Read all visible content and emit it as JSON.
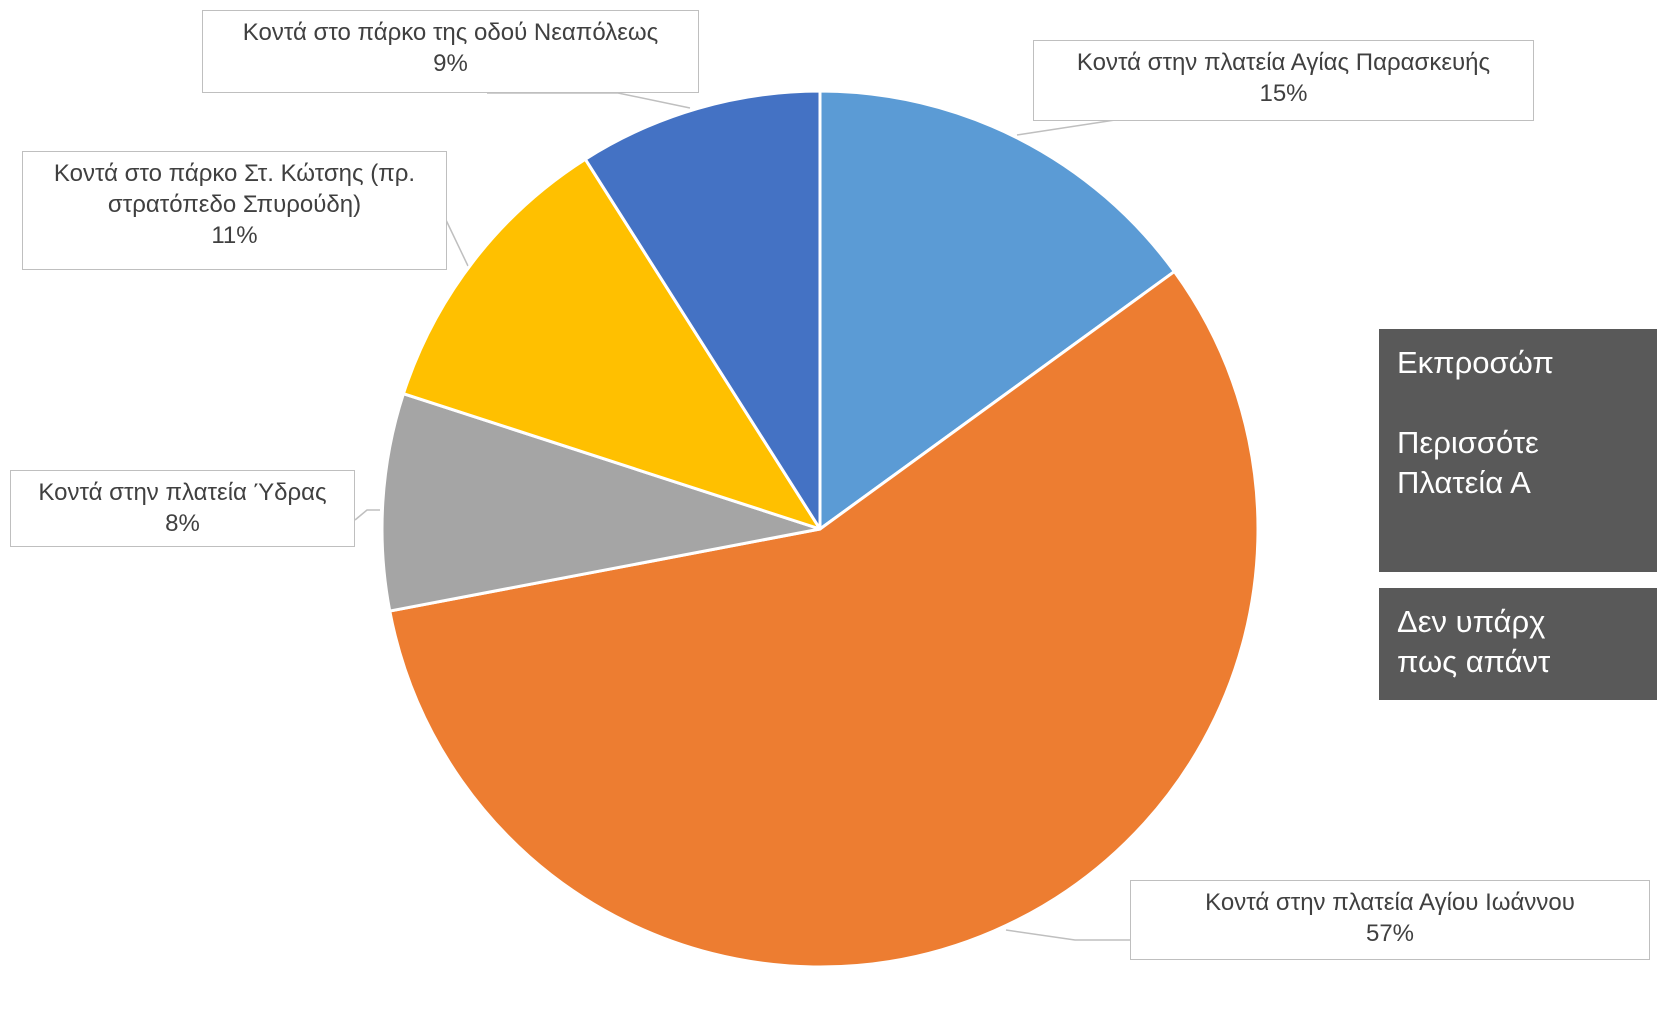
{
  "chart_data": {
    "type": "pie",
    "start_angle_deg": 0,
    "direction": "clockwise",
    "slices": [
      {
        "label": "Κοντά στην πλατεία Αγίας Παρασκευής",
        "value": 15,
        "display": "15%",
        "color": "#5B9BD5"
      },
      {
        "label": "Κοντά στην πλατεία Αγίου Ιωάννου",
        "value": 57,
        "display": "57%",
        "color": "#ED7D31"
      },
      {
        "label": "Κοντά στην πλατεία Ύδρας",
        "value": 8,
        "display": "8%",
        "color": "#A5A5A5"
      },
      {
        "label": "Κοντά στο πάρκο Στ. Κώτσης (πρ. στρατόπεδο Σπυρούδη)",
        "label_lines": [
          "Κοντά στο πάρκο Στ. Κώτσης (πρ.",
          "στρατόπεδο Σπυρούδη)"
        ],
        "value": 11,
        "display": "11%",
        "color": "#FFC000"
      },
      {
        "label": "Κοντά στο πάρκο της οδού Νεαπόλεως",
        "value": 9,
        "display": "9%",
        "color": "#4472C4"
      }
    ]
  },
  "notes": {
    "box1": {
      "line1": "Εκπροσώπ",
      "line2": "Περισσότε",
      "line3": "Πλατεία Α"
    },
    "box2": {
      "line1": "Δεν υπάρχ",
      "line2": "πως απάντ"
    }
  }
}
